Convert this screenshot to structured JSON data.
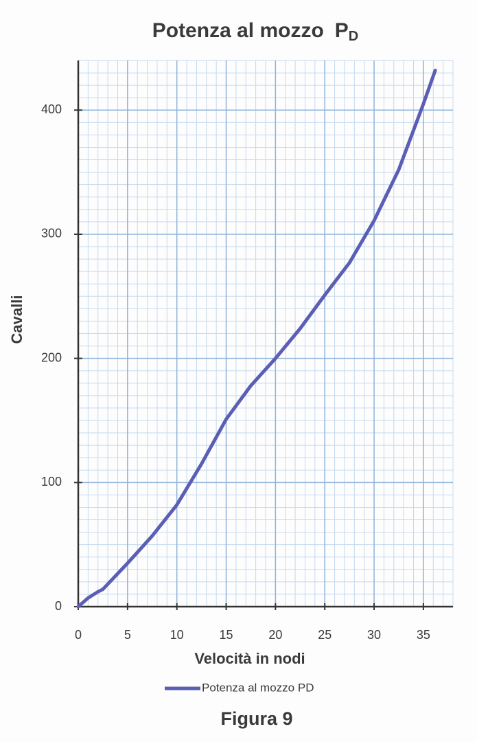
{
  "chart_data": {
    "type": "line",
    "title": "Potenza al mozzo",
    "title_symbol": "P",
    "title_subscript": "D",
    "xlabel": "Velocità in nodi",
    "ylabel": "Cavalli",
    "x": [
      0,
      1,
      2,
      2.5,
      5,
      7.5,
      10,
      12.5,
      15,
      17.5,
      20,
      22.5,
      25,
      27.5,
      30,
      32.5,
      35,
      36.2
    ],
    "series": [
      {
        "name": "Potenza al mozzo PD",
        "color": "#5a5eb4",
        "values": [
          0,
          7,
          12,
          14,
          35,
          57,
          82,
          115,
          151,
          178,
          200,
          224,
          251,
          277,
          311,
          352,
          405,
          432
        ]
      }
    ],
    "xlim": [
      0,
      38
    ],
    "ylim": [
      0,
      440
    ],
    "xticks": [
      0,
      5,
      10,
      15,
      20,
      25,
      30,
      35
    ],
    "yticks": [
      0,
      100,
      200,
      300,
      400
    ],
    "grid": true,
    "legend": "bottom"
  },
  "caption": "Figura 9"
}
